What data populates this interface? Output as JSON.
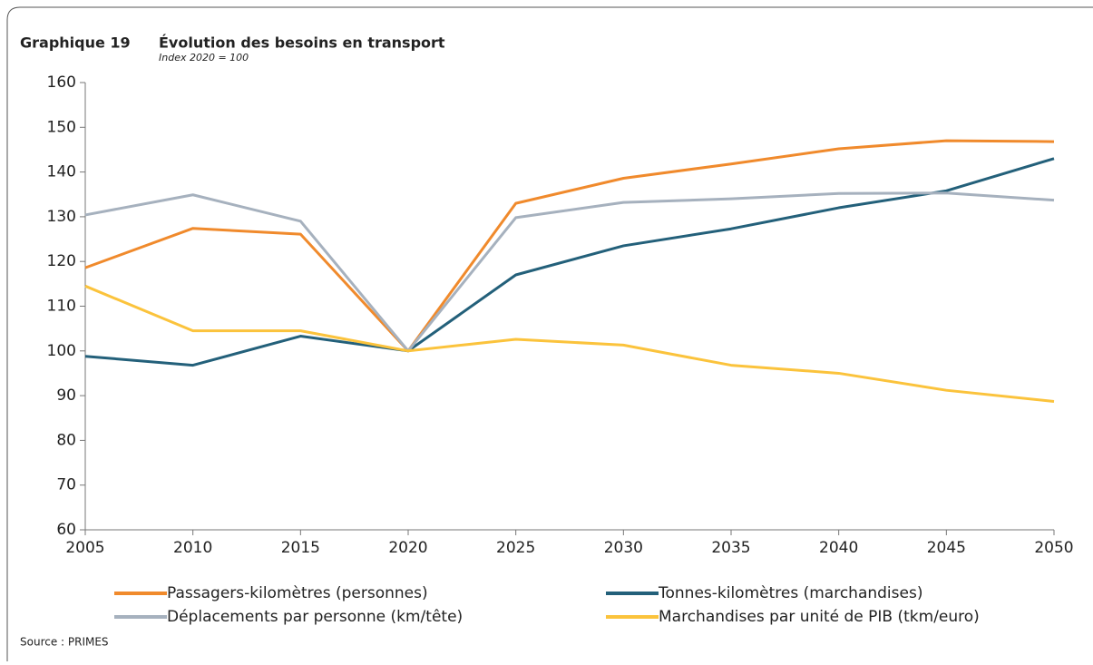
{
  "chart_data": {
    "type": "line",
    "label": "Graphique 19",
    "title": "Évolution des besoins en transport",
    "subtitle": "Index 2020 = 100",
    "source": "Source : PRIMES",
    "x": [
      2005,
      2010,
      2015,
      2020,
      2025,
      2030,
      2035,
      2040,
      2045,
      2050
    ],
    "xlim": [
      2005,
      2050
    ],
    "xticks": [
      2005,
      2010,
      2015,
      2020,
      2025,
      2030,
      2035,
      2040,
      2045,
      2050
    ],
    "ylim": [
      60,
      160
    ],
    "yticks": [
      60,
      70,
      80,
      90,
      100,
      110,
      120,
      130,
      140,
      150,
      160
    ],
    "grid": false,
    "series": [
      {
        "name": "Passagers-kilomètres (personnes)",
        "color": "#f08a2c",
        "values": [
          118.6,
          127.4,
          126.1,
          100,
          133,
          138.6,
          141.8,
          145.2,
          147,
          146.8
        ]
      },
      {
        "name": "Tonnes-kilomètres (marchandises)",
        "color": "#23607a",
        "values": [
          98.8,
          96.8,
          103.3,
          100,
          117,
          123.5,
          127.3,
          132,
          135.8,
          143
        ]
      },
      {
        "name": "Déplacements par personne (km/tête)",
        "color": "#a6b1be",
        "values": [
          130.4,
          134.9,
          129,
          100,
          129.8,
          133.2,
          134,
          135.2,
          135.3,
          133.7
        ]
      },
      {
        "name": "Marchandises par unité de PIB (tkm/euro)",
        "color": "#fbc33c",
        "values": [
          114.5,
          104.5,
          104.5,
          100,
          102.6,
          101.3,
          96.8,
          95,
          91.2,
          88.7
        ]
      }
    ]
  }
}
